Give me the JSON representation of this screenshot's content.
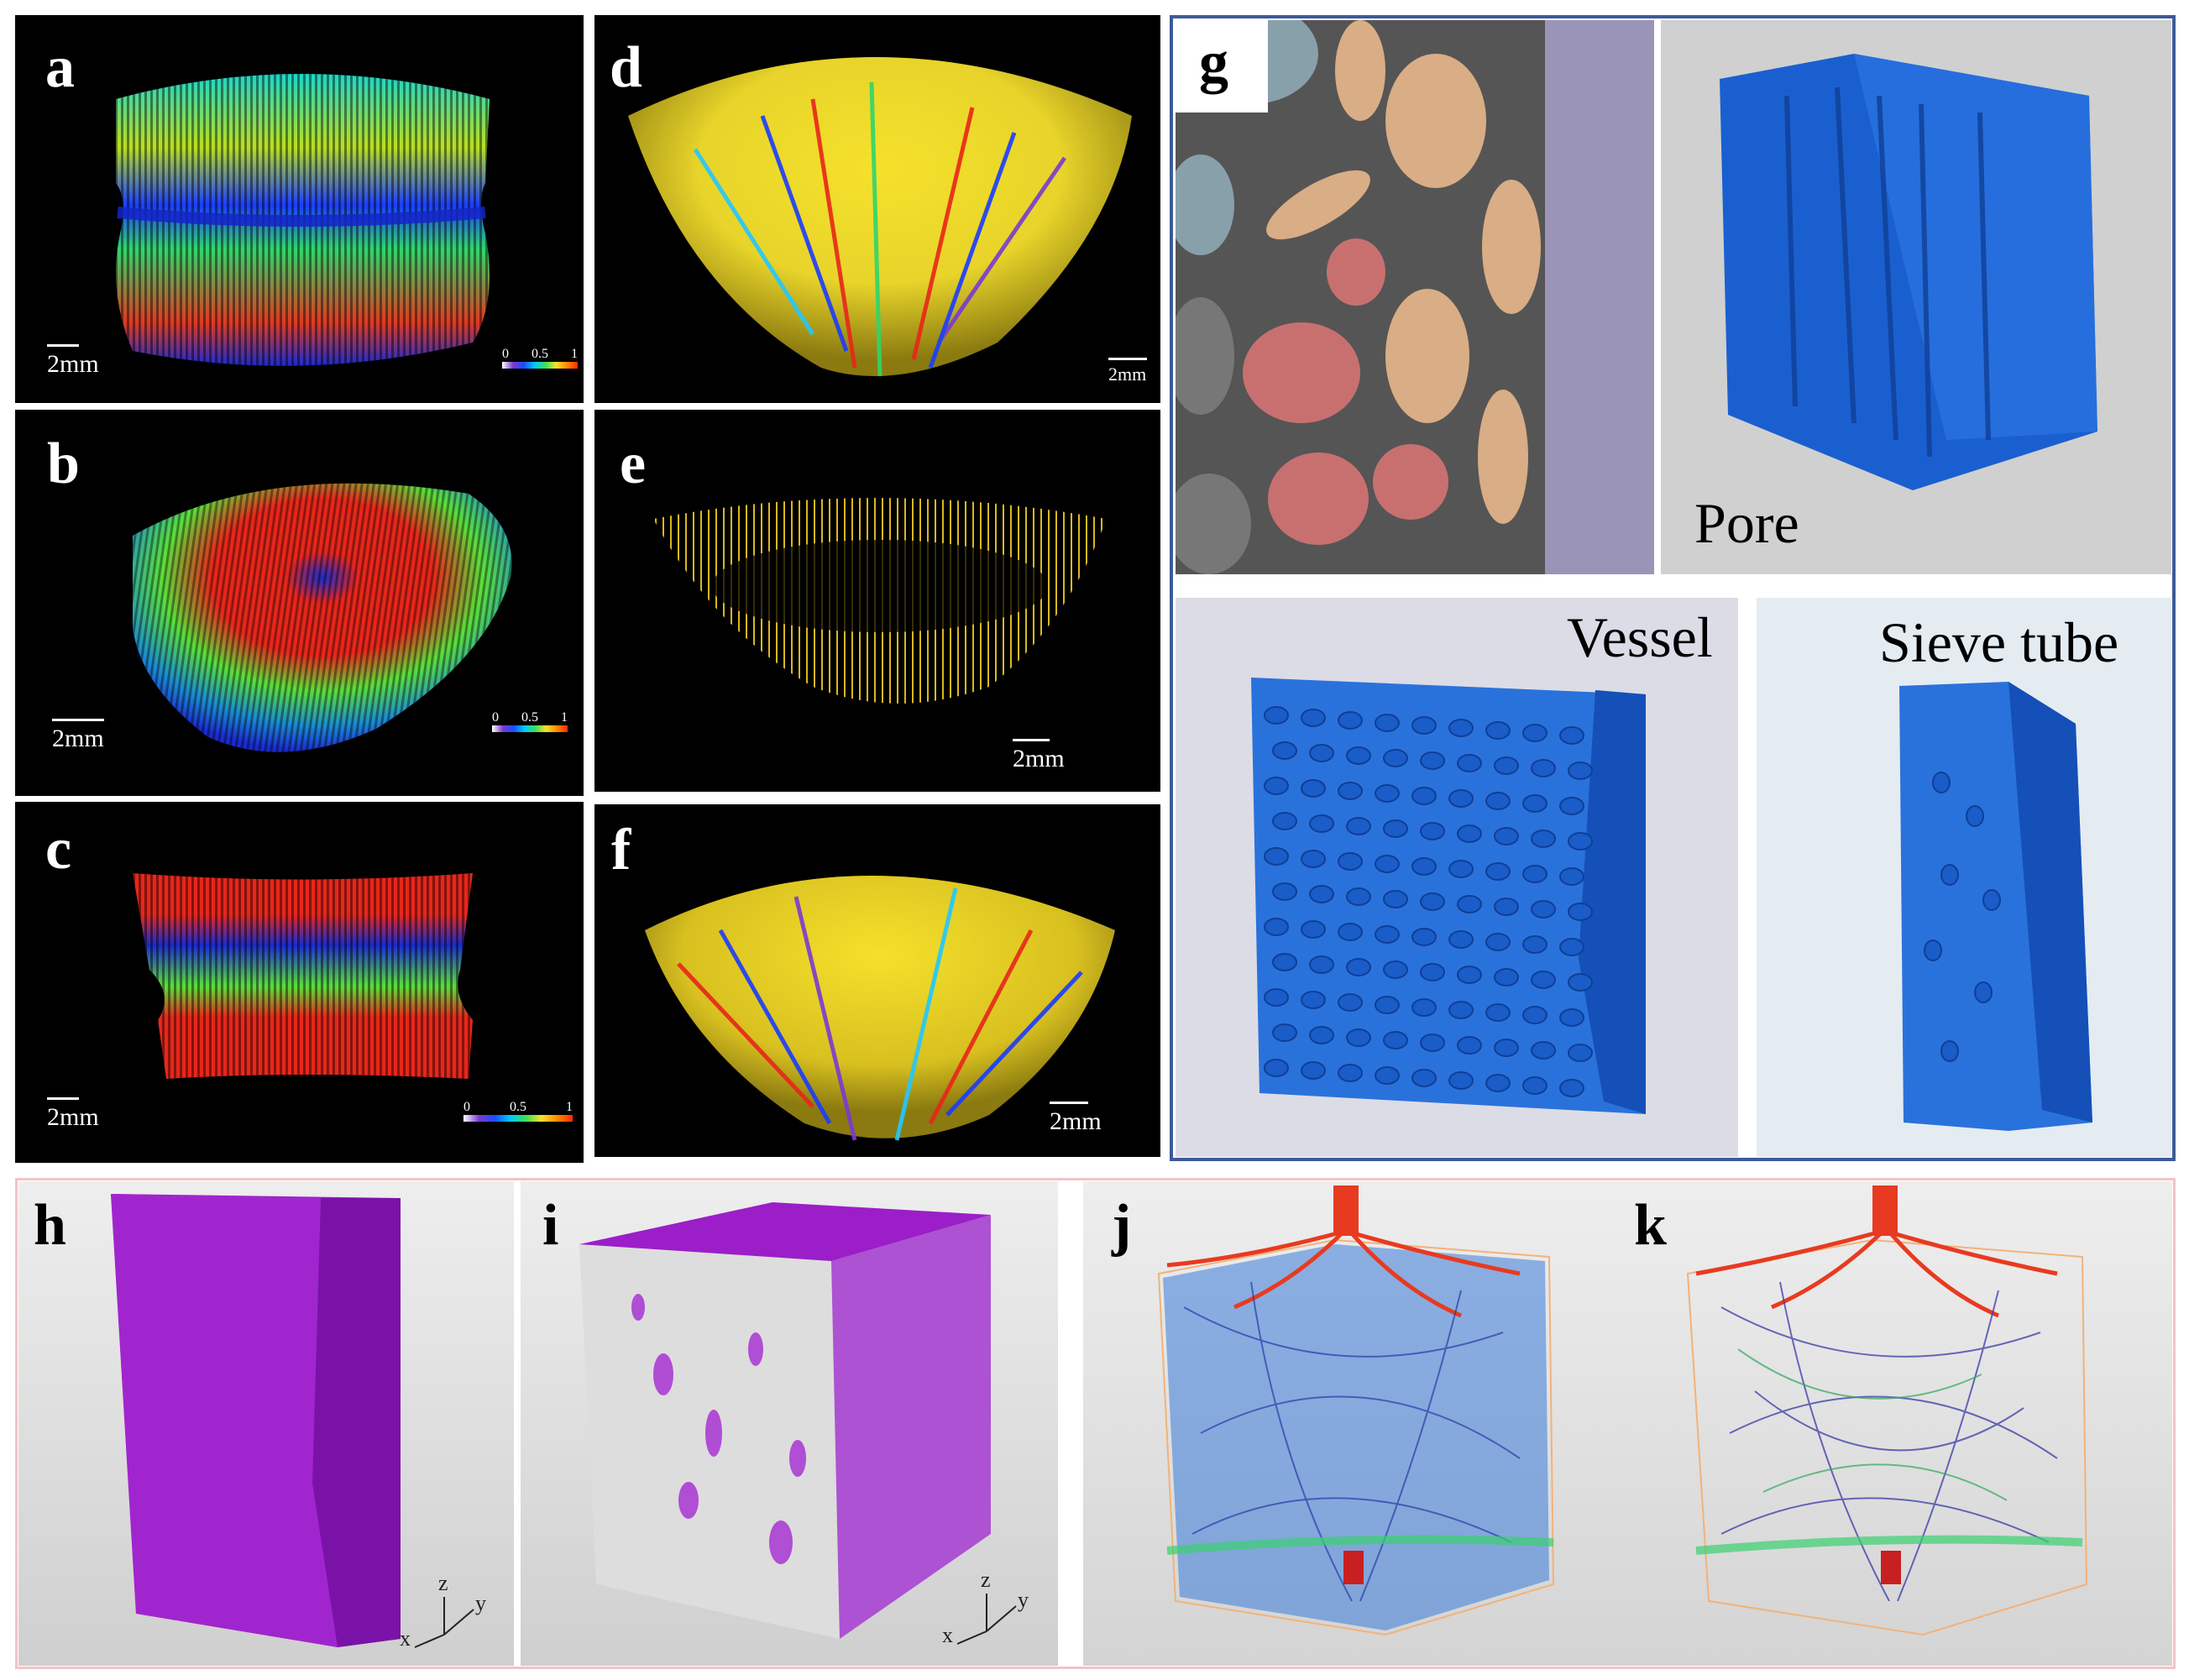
{
  "panels": {
    "a": {
      "letter": "a",
      "scale": "2mm",
      "cbar": [
        "0",
        "0.5",
        "1"
      ]
    },
    "b": {
      "letter": "b",
      "scale": "2mm",
      "cbar": [
        "0",
        "0.5",
        "1"
      ]
    },
    "c": {
      "letter": "c",
      "scale": "2mm",
      "cbar": [
        "0",
        "0.5",
        "1"
      ]
    },
    "d": {
      "letter": "d",
      "scale": "2mm"
    },
    "e": {
      "letter": "e",
      "scale": "2mm"
    },
    "f": {
      "letter": "f",
      "scale": "2mm"
    },
    "g": {
      "letter": "g",
      "pore": "Pore",
      "vessel": "Vessel",
      "sieve": "Sieve tube"
    },
    "h": {
      "letter": "h",
      "axes": {
        "x": "x",
        "y": "y",
        "z": "z"
      }
    },
    "i": {
      "letter": "i",
      "axes": {
        "x": "x",
        "y": "y",
        "z": "z"
      }
    },
    "j": {
      "letter": "j"
    },
    "k": {
      "letter": "k"
    }
  },
  "colors": {
    "frame_g": "#3d5a99",
    "frame_bottom": "#f2c3c8",
    "model_blue": "#1a5fd0",
    "purple": "#9b1ec8"
  }
}
